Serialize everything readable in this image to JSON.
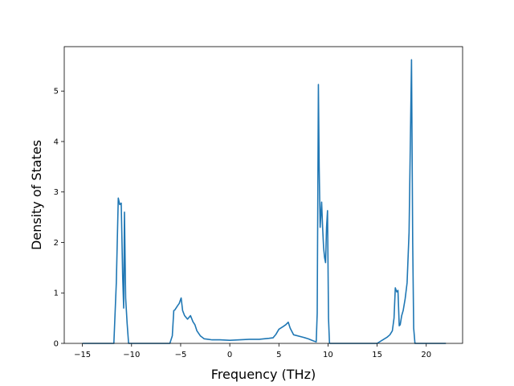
{
  "chart_data": {
    "type": "line",
    "xlabel": "Frequency (THz)",
    "ylabel": "Density of States",
    "xlim": [
      -16.85,
      23.7
    ],
    "ylim": [
      0,
      5.88
    ],
    "xticks": [
      -15,
      -10,
      -5,
      0,
      5,
      10,
      15,
      20
    ],
    "yticks": [
      0,
      1,
      2,
      3,
      4,
      5
    ],
    "grid": false,
    "line_color": "#1f77b4",
    "series": [
      {
        "x": [
          -15.0,
          -11.8,
          -11.55,
          -11.35,
          -11.2,
          -11.05,
          -10.9,
          -10.8,
          -10.72,
          -10.6,
          -10.45,
          -10.3,
          -10.2,
          -6.1,
          -5.85,
          -5.7,
          -5.6,
          -5.3,
          -5.15,
          -4.95,
          -4.8,
          -4.6,
          -4.3,
          -4.0,
          -3.75,
          -3.55,
          -3.35,
          -3.0,
          -2.6,
          -2.2,
          -1.8,
          -1.0,
          0.0,
          1.0,
          2.0,
          3.0,
          4.0,
          4.4,
          4.7,
          5.0,
          5.4,
          5.7,
          5.95,
          6.15,
          6.5,
          7.5,
          8.0,
          8.5,
          8.8,
          8.9,
          9.02,
          9.1,
          9.2,
          9.35,
          9.45,
          9.55,
          9.65,
          9.75,
          9.85,
          9.95,
          10.05,
          10.15,
          10.3,
          10.45,
          15.0,
          15.5,
          16.0,
          16.3,
          16.55,
          16.72,
          16.85,
          17.0,
          17.12,
          17.25,
          17.35,
          17.5,
          17.65,
          17.85,
          18.05,
          18.25,
          18.5,
          18.62,
          18.72,
          18.85,
          20.0,
          22.0
        ],
        "y": [
          0.0,
          0.0,
          1.2,
          2.88,
          2.75,
          2.78,
          1.3,
          0.7,
          2.6,
          0.9,
          0.4,
          0.0,
          0.0,
          0.0,
          0.15,
          0.65,
          0.66,
          0.75,
          0.79,
          0.9,
          0.65,
          0.55,
          0.48,
          0.55,
          0.43,
          0.37,
          0.25,
          0.15,
          0.09,
          0.08,
          0.07,
          0.07,
          0.06,
          0.07,
          0.08,
          0.08,
          0.1,
          0.11,
          0.18,
          0.28,
          0.33,
          0.37,
          0.42,
          0.3,
          0.17,
          0.12,
          0.09,
          0.05,
          0.03,
          0.6,
          5.13,
          3.5,
          2.3,
          2.8,
          2.3,
          1.9,
          1.7,
          1.6,
          2.3,
          2.63,
          0.5,
          0.0,
          0.0,
          0.0,
          0.0,
          0.06,
          0.12,
          0.17,
          0.25,
          0.5,
          1.1,
          1.02,
          1.05,
          0.35,
          0.37,
          0.55,
          0.65,
          0.88,
          1.2,
          2.2,
          5.62,
          2.0,
          0.3,
          0.0,
          0.0,
          0.0
        ]
      }
    ]
  }
}
